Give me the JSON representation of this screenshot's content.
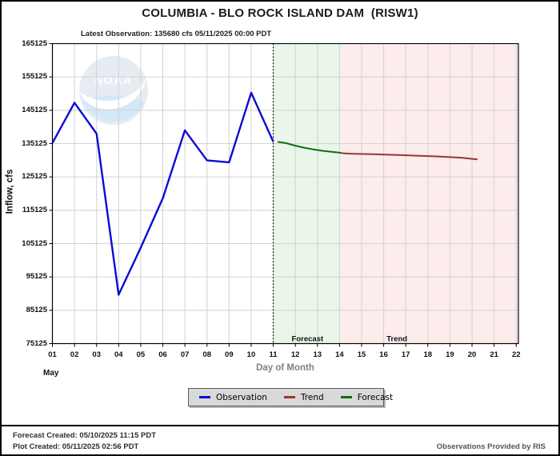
{
  "header": {
    "title": "COLUMBIA - BLO ROCK ISLAND DAM  (RISW1)",
    "subtitle": "Latest Observation: 135680 cfs 05/11/2025 00:00 PDT"
  },
  "watermark": {
    "text": "NOAA"
  },
  "chart_data": {
    "type": "line",
    "title": "COLUMBIA - BLO ROCK ISLAND DAM  (RISW1)",
    "xlabel": "Day of Month",
    "ylabel": "Inflow, cfs",
    "month_label": "May",
    "x_range": [
      1,
      22.1
    ],
    "y_range": [
      75125,
      165125
    ],
    "y_tick_step": 10000,
    "grid": true,
    "x_ticks": [
      "01",
      "02",
      "03",
      "04",
      "05",
      "06",
      "07",
      "08",
      "09",
      "10",
      "11",
      "12",
      "13",
      "14",
      "15",
      "16",
      "17",
      "18",
      "19",
      "20",
      "21",
      "22"
    ],
    "y_ticks": [
      165125,
      155125,
      145125,
      135125,
      125125,
      115125,
      105125,
      95125,
      85125,
      75125
    ],
    "now_line_x": 11,
    "regions": [
      {
        "label": "Forecast",
        "x0": 11,
        "x1": 14.1,
        "color": "#eaf6ea",
        "label_x": 12.55
      },
      {
        "label": "Trend",
        "x0": 14.1,
        "x1": 22.1,
        "color": "#fdecec",
        "label_x": 16.6
      }
    ],
    "series": [
      {
        "name": "Observation",
        "color": "#0b0bd6",
        "width": 2.4,
        "points": [
          [
            1,
            135300
          ],
          [
            2,
            147400
          ],
          [
            3,
            138100
          ],
          [
            4,
            89800
          ],
          [
            5,
            103900
          ],
          [
            6,
            118700
          ],
          [
            7,
            139100
          ],
          [
            8,
            130100
          ],
          [
            9,
            129500
          ],
          [
            10,
            150400
          ],
          [
            11,
            135680
          ]
        ]
      },
      {
        "name": "Forecast",
        "color": "#0e6f0e",
        "width": 2,
        "points": [
          [
            11.2,
            135650
          ],
          [
            11.6,
            135250
          ],
          [
            12,
            134500
          ],
          [
            12.4,
            133900
          ],
          [
            12.8,
            133400
          ],
          [
            13.2,
            133000
          ],
          [
            13.6,
            132700
          ],
          [
            14.1,
            132350
          ]
        ]
      },
      {
        "name": "Trend",
        "color": "#9c3333",
        "width": 2,
        "points": [
          [
            14.1,
            132250
          ],
          [
            14.5,
            132100
          ],
          [
            15.5,
            131950
          ],
          [
            16.5,
            131750
          ],
          [
            17.5,
            131500
          ],
          [
            18.5,
            131250
          ],
          [
            19.5,
            130900
          ],
          [
            20.25,
            130400
          ]
        ]
      }
    ]
  },
  "legend": {
    "items": [
      {
        "label": "Observation",
        "color": "#0b0bd6"
      },
      {
        "label": "Trend",
        "color": "#9c3333"
      },
      {
        "label": "Forecast",
        "color": "#0e6f0e"
      }
    ]
  },
  "footer": {
    "line1": "Forecast Created: 05/10/2025 11:15 PDT",
    "line2": "Plot Created: 05/11/2025 02:56 PDT",
    "right": "Observations Provided by RIS"
  }
}
